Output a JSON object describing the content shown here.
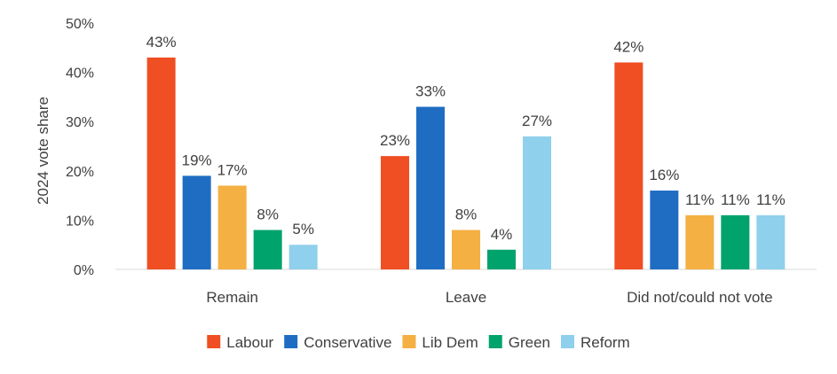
{
  "chart_data": {
    "type": "bar",
    "title": "",
    "xlabel": "",
    "ylabel": "2024 vote share",
    "ylim": [
      0,
      50
    ],
    "yticks": [
      "0%",
      "10%",
      "20%",
      "30%",
      "40%",
      "50%"
    ],
    "categories": [
      "Remain",
      "Leave",
      "Did not/could not vote"
    ],
    "series": [
      {
        "name": "Labour",
        "color": "#f04e23",
        "values": [
          43,
          23,
          42
        ],
        "labels": [
          "43%",
          "23%",
          "42%"
        ]
      },
      {
        "name": "Conservative",
        "color": "#1f6dc3",
        "values": [
          19,
          33,
          16
        ],
        "labels": [
          "19%",
          "33%",
          "16%"
        ]
      },
      {
        "name": "Lib Dem",
        "color": "#f4b042",
        "values": [
          17,
          8,
          11
        ],
        "labels": [
          "17%",
          "8%",
          "11%"
        ]
      },
      {
        "name": "Green",
        "color": "#00a36c",
        "values": [
          8,
          4,
          11
        ],
        "labels": [
          "8%",
          "4%",
          "11%"
        ]
      },
      {
        "name": "Reform",
        "color": "#8fd0ec",
        "values": [
          5,
          27,
          11
        ],
        "labels": [
          "5%",
          "27%",
          "11%"
        ]
      }
    ],
    "legend_position": "bottom"
  }
}
